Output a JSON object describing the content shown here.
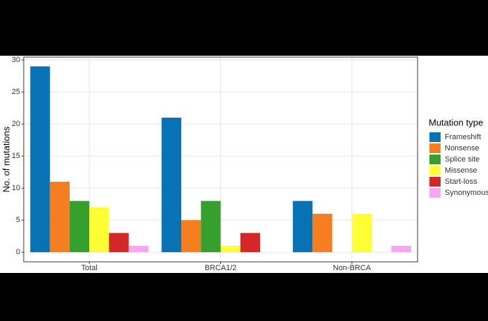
{
  "chart_data": {
    "type": "bar",
    "y_label": "No. of mutations",
    "legend_title": "Mutation type",
    "categories": [
      "Total",
      "BRCA1/2",
      "Non-BRCA"
    ],
    "series": [
      {
        "name": "Frameshift",
        "color": "#0873b4",
        "values": [
          29,
          21,
          8
        ]
      },
      {
        "name": "Nonsense",
        "color": "#f47e20",
        "values": [
          11,
          5,
          6
        ]
      },
      {
        "name": "Splice site",
        "color": "#35a02e",
        "values": [
          8,
          8,
          0
        ]
      },
      {
        "name": "Missense",
        "color": "#ffff33",
        "values": [
          7,
          1,
          6
        ]
      },
      {
        "name": "Start-loss",
        "color": "#d62728",
        "values": [
          3,
          3,
          0
        ]
      },
      {
        "name": "Synonymous",
        "color": "#f7a6f2",
        "values": [
          1,
          0,
          1
        ]
      }
    ],
    "ylim": [
      -1.5,
      30.45
    ],
    "yticks": [
      0,
      5,
      10,
      15,
      20,
      25,
      30
    ],
    "grid": true,
    "legend": "right"
  }
}
